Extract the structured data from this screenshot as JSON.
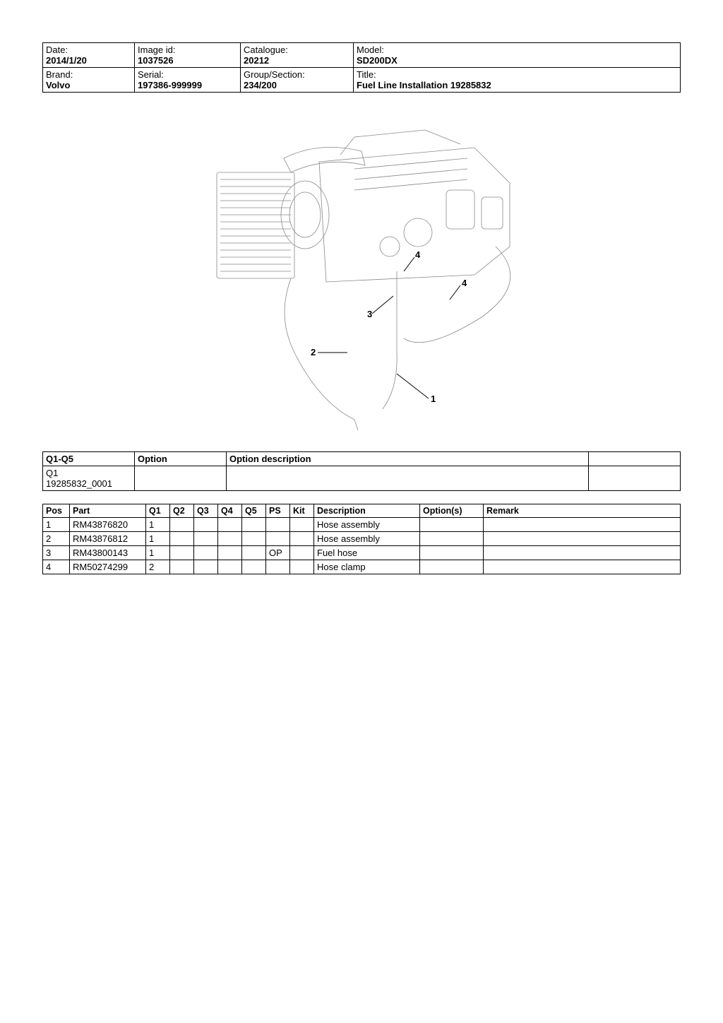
{
  "header": {
    "date_label": "Date:",
    "date_value": "2014/1/20",
    "image_label": "Image id:",
    "image_value": "1037526",
    "catalogue_label": "Catalogue:",
    "catalogue_value": "20212",
    "model_label": "Model:",
    "model_value": "SD200DX",
    "brand_label": "Brand:",
    "brand_value": "Volvo",
    "serial_label": "Serial:",
    "serial_value": "197386-999999",
    "group_label": "Group/Section:",
    "group_value": "234/200",
    "title_label": "Title:",
    "title_value": "Fuel Line Installation 19285832"
  },
  "option_table": {
    "col_q": "Q1-Q5",
    "col_option": "Option",
    "col_desc": "Option description",
    "col_blank": "",
    "row1_line1": "Q1",
    "row1_line2": "19285832_0001"
  },
  "parts_table": {
    "headers": {
      "pos": "Pos",
      "part": "Part",
      "q1": "Q1",
      "q2": "Q2",
      "q3": "Q3",
      "q4": "Q4",
      "q5": "Q5",
      "ps": "PS",
      "kit": "Kit",
      "desc": "Description",
      "opts": "Option(s)",
      "remark": "Remark"
    },
    "rows": [
      {
        "pos": "1",
        "part": "RM43876820",
        "q1": "1",
        "q2": "",
        "q3": "",
        "q4": "",
        "q5": "",
        "ps": "",
        "kit": "",
        "desc": "Hose assembly",
        "opts": "",
        "remark": ""
      },
      {
        "pos": "2",
        "part": "RM43876812",
        "q1": "1",
        "q2": "",
        "q3": "",
        "q4": "",
        "q5": "",
        "ps": "",
        "kit": "",
        "desc": "Hose assembly",
        "opts": "",
        "remark": ""
      },
      {
        "pos": "3",
        "part": "RM43800143",
        "q1": "1",
        "q2": "",
        "q3": "",
        "q4": "",
        "q5": "",
        "ps": "OP",
        "kit": "",
        "desc": "Fuel hose",
        "opts": "",
        "remark": ""
      },
      {
        "pos": "4",
        "part": "RM50274299",
        "q1": "2",
        "q2": "",
        "q3": "",
        "q4": "",
        "q5": "",
        "ps": "",
        "kit": "",
        "desc": "Hose clamp",
        "opts": "",
        "remark": ""
      }
    ]
  },
  "callouts": {
    "c1": "1",
    "c2": "2",
    "c3": "3",
    "c4a": "4",
    "c4b": "4"
  }
}
